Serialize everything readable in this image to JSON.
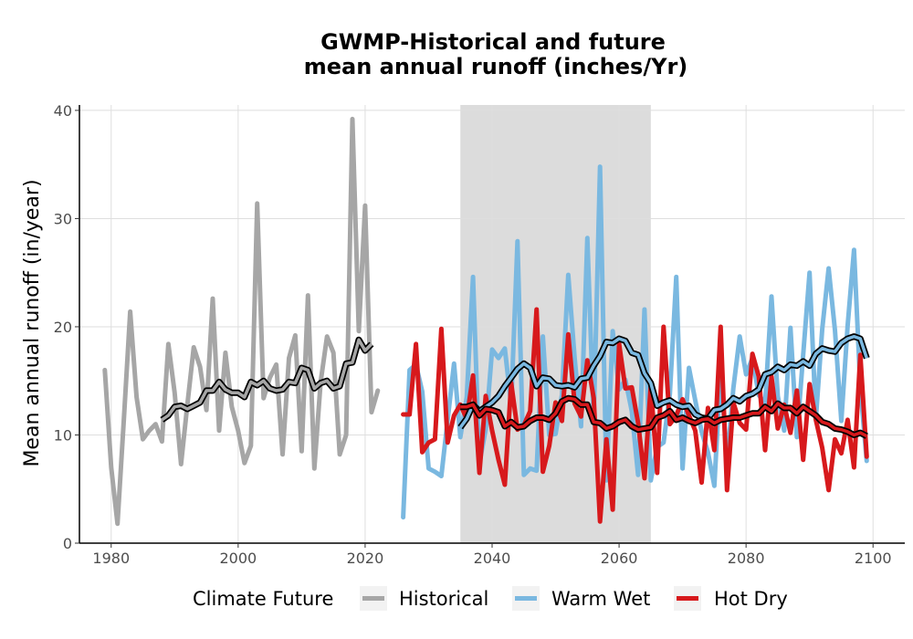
{
  "chart_data": {
    "type": "line",
    "title": "GWMP-Historical and future",
    "subtitle": "mean annual runoff (inches/Yr)",
    "xlabel": "",
    "ylabel": "Mean annual runoff (in/year)",
    "xlim": [
      1975,
      2105
    ],
    "ylim": [
      0,
      40.5
    ],
    "x_ticks": [
      1980,
      2000,
      2020,
      2040,
      2060,
      2080,
      2100
    ],
    "y_ticks": [
      0,
      10,
      20,
      30,
      40
    ],
    "grid": true,
    "shaded_band": {
      "x_start": 2035,
      "x_end": 2065,
      "color": "#dcdcdc"
    },
    "legend": {
      "title": "Climate Future",
      "position": "bottom"
    },
    "colors": {
      "historical": "#a6a6a6",
      "warm_wet": "#7ab8e0",
      "hot_dry": "#d7191c",
      "rolling": "#000000"
    },
    "series": [
      {
        "name": "Historical",
        "key": "historical",
        "x": [
          1979,
          1980,
          1981,
          1982,
          1983,
          1984,
          1985,
          1986,
          1987,
          1988,
          1989,
          1990,
          1991,
          1992,
          1993,
          1994,
          1995,
          1996,
          1997,
          1998,
          1999,
          2000,
          2001,
          2002,
          2003,
          2004,
          2005,
          2006,
          2007,
          2008,
          2009,
          2010,
          2011,
          2012,
          2013,
          2014,
          2015,
          2016,
          2017,
          2018,
          2019,
          2020,
          2021,
          2022
        ],
        "y": [
          16.0,
          7.0,
          1.8,
          11.5,
          21.4,
          13.5,
          9.6,
          10.4,
          11.0,
          9.4,
          18.4,
          13.9,
          7.3,
          12.8,
          18.1,
          16.3,
          12.3,
          22.6,
          10.4,
          17.6,
          12.6,
          10.4,
          7.4,
          9.0,
          31.4,
          13.4,
          15.3,
          16.5,
          8.2,
          17.1,
          19.2,
          8.5,
          22.9,
          6.9,
          14.9,
          19.1,
          17.6,
          8.2,
          10.0,
          39.2,
          19.6,
          31.2,
          12.1,
          14.1
        ]
      },
      {
        "name": "Warm Wet",
        "key": "warm_wet",
        "x": [
          2026,
          2027,
          2028,
          2029,
          2030,
          2031,
          2032,
          2033,
          2034,
          2035,
          2036,
          2037,
          2038,
          2039,
          2040,
          2041,
          2042,
          2043,
          2044,
          2045,
          2046,
          2047,
          2048,
          2049,
          2050,
          2051,
          2052,
          2053,
          2054,
          2055,
          2056,
          2057,
          2058,
          2059,
          2060,
          2061,
          2062,
          2063,
          2064,
          2065,
          2066,
          2067,
          2068,
          2069,
          2070,
          2071,
          2072,
          2073,
          2074,
          2075,
          2076,
          2077,
          2078,
          2079,
          2080,
          2081,
          2082,
          2083,
          2084,
          2085,
          2086,
          2087,
          2088,
          2089,
          2090,
          2091,
          2092,
          2093,
          2094,
          2095,
          2096,
          2097,
          2098,
          2099
        ],
        "y": [
          2.4,
          16.0,
          16.5,
          14.0,
          6.9,
          6.6,
          6.2,
          11.4,
          16.6,
          9.8,
          13.5,
          24.6,
          7.4,
          10.5,
          17.9,
          17.1,
          18.0,
          12.8,
          27.9,
          6.3,
          6.9,
          6.7,
          19.1,
          10.0,
          10.1,
          13.7,
          24.8,
          17.1,
          10.8,
          28.2,
          11.3,
          34.8,
          5.8,
          19.6,
          14.2,
          15.1,
          12.2,
          6.3,
          21.6,
          5.8,
          8.9,
          9.3,
          13.8,
          24.6,
          6.9,
          16.2,
          13.2,
          10.3,
          8.4,
          5.3,
          16.1,
          7.4,
          14.3,
          19.1,
          15.6,
          17.1,
          13.7,
          12.9,
          22.8,
          13.6,
          10.4,
          19.9,
          9.8,
          17.4,
          25.0,
          11.5,
          19.8,
          25.4,
          19.7,
          11.3,
          20.1,
          27.1,
          14.4,
          7.6
        ]
      },
      {
        "name": "Hot Dry",
        "key": "hot_dry",
        "x": [
          2026,
          2027,
          2028,
          2029,
          2030,
          2031,
          2032,
          2033,
          2034,
          2035,
          2036,
          2037,
          2038,
          2039,
          2040,
          2041,
          2042,
          2043,
          2044,
          2045,
          2046,
          2047,
          2048,
          2049,
          2050,
          2051,
          2052,
          2053,
          2054,
          2055,
          2056,
          2057,
          2058,
          2059,
          2060,
          2061,
          2062,
          2063,
          2064,
          2065,
          2066,
          2067,
          2068,
          2069,
          2070,
          2071,
          2072,
          2073,
          2074,
          2075,
          2076,
          2077,
          2078,
          2079,
          2080,
          2081,
          2082,
          2083,
          2084,
          2085,
          2086,
          2087,
          2088,
          2089,
          2090,
          2091,
          2092,
          2093,
          2094,
          2095,
          2096,
          2097,
          2098,
          2099
        ],
        "y": [
          11.9,
          11.9,
          18.4,
          8.4,
          9.3,
          9.6,
          19.8,
          9.3,
          11.8,
          12.8,
          11.5,
          15.5,
          6.5,
          13.6,
          10.4,
          7.7,
          5.4,
          14.8,
          10.5,
          10.9,
          12.2,
          21.6,
          6.6,
          9.0,
          13.0,
          11.3,
          19.3,
          12.9,
          11.7,
          16.9,
          13.4,
          2.0,
          9.6,
          3.1,
          18.4,
          14.3,
          14.4,
          11.1,
          6.0,
          14.6,
          6.5,
          20.0,
          11.0,
          11.8,
          13.3,
          11.8,
          10.4,
          5.6,
          12.5,
          8.6,
          20.0,
          4.9,
          13.0,
          11.1,
          10.5,
          17.5,
          15.4,
          8.6,
          15.4,
          10.6,
          12.8,
          10.2,
          14.1,
          7.7,
          14.7,
          11.4,
          8.8,
          4.9,
          9.6,
          8.3,
          11.4,
          7.0,
          17.4,
          8.0
        ]
      },
      {
        "name": "",
        "key": "historical_rolling",
        "x": [
          1988,
          1989,
          1990,
          1991,
          1992,
          1993,
          1994,
          1995,
          1996,
          1997,
          1998,
          1999,
          2000,
          2001,
          2002,
          2003,
          2004,
          2005,
          2006,
          2007,
          2008,
          2009,
          2010,
          2011,
          2012,
          2013,
          2014,
          2015,
          2016,
          2017,
          2018,
          2019,
          2020,
          2021,
          2022
        ],
        "y": [
          11.4,
          11.8,
          12.6,
          12.7,
          12.4,
          12.7,
          13.0,
          14.1,
          14.1,
          14.9,
          14.2,
          13.9,
          13.9,
          13.5,
          14.9,
          14.6,
          15.0,
          14.3,
          14.1,
          14.2,
          14.9,
          14.8,
          16.2,
          16.0,
          14.3,
          14.8,
          15.0,
          14.3,
          14.5,
          16.6,
          16.7,
          18.8,
          17.8,
          18.4,
          null
        ]
      },
      {
        "name": "",
        "key": "warm_wet_rolling",
        "x": [
          2035,
          2036,
          2037,
          2038,
          2039,
          2040,
          2041,
          2042,
          2043,
          2044,
          2045,
          2046,
          2047,
          2048,
          2049,
          2050,
          2051,
          2052,
          2053,
          2054,
          2055,
          2056,
          2057,
          2058,
          2059,
          2060,
          2061,
          2062,
          2063,
          2064,
          2065,
          2066,
          2067,
          2068,
          2069,
          2070,
          2071,
          2072,
          2073,
          2074,
          2075,
          2076,
          2077,
          2078,
          2079,
          2080,
          2081,
          2082,
          2083,
          2084,
          2085,
          2086,
          2087,
          2088,
          2089,
          2090,
          2091,
          2092,
          2093,
          2094,
          2095,
          2096,
          2097,
          2098,
          2099
        ],
        "y": [
          10.7,
          11.5,
          12.8,
          12.2,
          12.6,
          13.0,
          13.6,
          14.5,
          15.3,
          16.1,
          16.6,
          16.2,
          14.5,
          15.3,
          15.2,
          14.6,
          14.5,
          14.6,
          14.4,
          15.2,
          15.3,
          16.4,
          17.3,
          18.6,
          18.5,
          18.9,
          18.7,
          17.6,
          17.4,
          15.7,
          14.8,
          12.7,
          13.0,
          13.2,
          12.8,
          12.6,
          12.7,
          11.9,
          11.6,
          11.5,
          12.3,
          12.4,
          12.8,
          13.4,
          13.1,
          13.6,
          13.8,
          14.2,
          15.6,
          15.8,
          16.3,
          16.0,
          16.5,
          16.4,
          16.8,
          16.4,
          17.5,
          18.0,
          17.8,
          17.7,
          18.5,
          18.9,
          19.1,
          18.9,
          17.1
        ]
      },
      {
        "name": "",
        "key": "hot_dry_rolling",
        "x": [
          2035,
          2036,
          2037,
          2038,
          2039,
          2040,
          2041,
          2042,
          2043,
          2044,
          2045,
          2046,
          2047,
          2048,
          2049,
          2050,
          2051,
          2052,
          2053,
          2054,
          2055,
          2056,
          2057,
          2058,
          2059,
          2060,
          2061,
          2062,
          2063,
          2064,
          2065,
          2066,
          2067,
          2068,
          2069,
          2070,
          2071,
          2072,
          2073,
          2074,
          2075,
          2076,
          2077,
          2078,
          2079,
          2080,
          2081,
          2082,
          2083,
          2084,
          2085,
          2086,
          2087,
          2088,
          2089,
          2090,
          2091,
          2092,
          2093,
          2094,
          2095,
          2096,
          2097,
          2098,
          2099
        ],
        "y": [
          12.6,
          12.6,
          12.8,
          11.8,
          12.4,
          12.3,
          12.1,
          10.8,
          11.2,
          10.7,
          10.8,
          11.3,
          11.6,
          11.6,
          11.4,
          12.0,
          13.1,
          13.4,
          13.3,
          12.8,
          12.8,
          11.2,
          11.1,
          10.6,
          10.8,
          11.2,
          11.4,
          10.8,
          10.5,
          10.6,
          10.7,
          11.6,
          11.8,
          12.2,
          11.4,
          11.6,
          11.3,
          11.1,
          11.4,
          11.5,
          11.1,
          11.4,
          11.5,
          11.6,
          11.6,
          11.8,
          12.0,
          12.0,
          12.6,
          12.2,
          12.9,
          12.5,
          12.5,
          12.0,
          12.6,
          12.2,
          11.8,
          11.2,
          11.0,
          10.6,
          10.5,
          10.3,
          10.0,
          10.2,
          9.9
        ]
      }
    ]
  }
}
